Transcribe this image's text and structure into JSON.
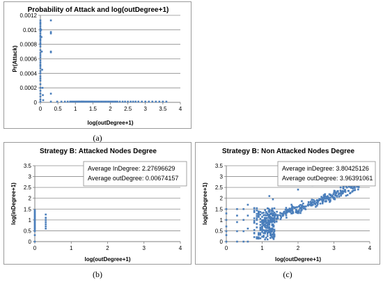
{
  "captions": [
    "(a)",
    "(b)",
    "(c)"
  ],
  "chart_data": [
    {
      "type": "scatter",
      "title": "Probability of Attack and log(outDegree+1)",
      "xlabel": "log(outDegree+1)",
      "ylabel": "Pr(Attack)",
      "xlim": [
        0,
        4
      ],
      "ylim": [
        0,
        0.0012
      ],
      "xticks": [
        0,
        0.5,
        1,
        1.5,
        2,
        2.5,
        3,
        3.5,
        4
      ],
      "yticks": [
        0,
        0.0002,
        0.0004,
        0.0006,
        0.0008,
        0.001,
        0.0012
      ],
      "grid": "horizontal",
      "color": "#4a7ebb",
      "points": [
        [
          0.0,
          0.00113
        ],
        [
          0.0,
          0.0011
        ],
        [
          0.0,
          0.00108
        ],
        [
          0.0,
          0.00105
        ],
        [
          0.0,
          0.00102
        ],
        [
          0.0,
          0.001
        ],
        [
          0.0,
          0.00098
        ],
        [
          0.0,
          0.00095
        ],
        [
          0.0,
          0.00092
        ],
        [
          0.0,
          0.0009
        ],
        [
          0.0,
          0.00087
        ],
        [
          0.0,
          0.00085
        ],
        [
          0.0,
          0.00082
        ],
        [
          0.0,
          0.0008
        ],
        [
          0.0,
          0.00077
        ],
        [
          0.0,
          0.00072
        ],
        [
          0.0,
          0.00068
        ],
        [
          0.0,
          0.00065
        ],
        [
          0.0,
          0.00062
        ],
        [
          0.0,
          0.00058
        ],
        [
          0.0,
          0.00055
        ],
        [
          0.0,
          0.00052
        ],
        [
          0.0,
          0.0005
        ],
        [
          0.0,
          0.00047
        ],
        [
          0.0,
          0.00043
        ],
        [
          0.0,
          0.0004
        ],
        [
          0.0,
          0.00036
        ],
        [
          0.0,
          0.00033
        ],
        [
          0.0,
          0.0003
        ],
        [
          0.0,
          0.00025
        ],
        [
          0.0,
          0.0002
        ],
        [
          0.0,
          0.00016
        ],
        [
          0.0,
          0.00012
        ],
        [
          0.0,
          8e-05
        ],
        [
          0.0,
          4e-05
        ],
        [
          0.0,
          1e-05
        ],
        [
          0.02,
          0.001
        ],
        [
          0.03,
          0.0009
        ],
        [
          0.04,
          0.0007
        ],
        [
          0.05,
          0.00045
        ],
        [
          0.06,
          0.0002
        ],
        [
          0.07,
          0.0001
        ],
        [
          0.08,
          3e-05
        ],
        [
          0.3,
          0.00113
        ],
        [
          0.3,
          0.00097
        ],
        [
          0.3,
          0.00095
        ],
        [
          0.3,
          0.0007
        ],
        [
          0.3,
          0.00069
        ],
        [
          0.3,
          0.00012
        ],
        [
          0.3,
          1e-05
        ],
        [
          0.48,
          1e-05
        ],
        [
          0.6,
          1e-05
        ],
        [
          0.7,
          1e-05
        ],
        [
          0.78,
          1e-05
        ],
        [
          0.85,
          1e-05
        ],
        [
          0.9,
          1e-05
        ],
        [
          0.95,
          1e-05
        ],
        [
          1.0,
          1e-05
        ],
        [
          1.04,
          1e-05
        ],
        [
          1.08,
          1e-05
        ],
        [
          1.11,
          1e-05
        ],
        [
          1.15,
          1e-05
        ],
        [
          1.18,
          1e-05
        ],
        [
          1.2,
          1e-05
        ],
        [
          1.23,
          1e-05
        ],
        [
          1.26,
          1e-05
        ],
        [
          1.3,
          1e-05
        ],
        [
          1.34,
          1e-05
        ],
        [
          1.38,
          1e-05
        ],
        [
          1.42,
          1e-05
        ],
        [
          1.46,
          1e-05
        ],
        [
          1.5,
          1e-05
        ],
        [
          1.55,
          1e-05
        ],
        [
          1.6,
          1e-05
        ],
        [
          1.65,
          1e-05
        ],
        [
          1.7,
          1e-05
        ],
        [
          1.75,
          1e-05
        ],
        [
          1.8,
          1e-05
        ],
        [
          1.85,
          1e-05
        ],
        [
          1.9,
          1e-05
        ],
        [
          1.95,
          1e-05
        ],
        [
          2.0,
          1e-05
        ],
        [
          2.05,
          1e-05
        ],
        [
          2.1,
          1e-05
        ],
        [
          2.15,
          1e-05
        ],
        [
          2.2,
          1e-05
        ],
        [
          2.27,
          1e-05
        ],
        [
          2.35,
          1e-05
        ],
        [
          2.42,
          1e-05
        ],
        [
          2.5,
          1e-05
        ],
        [
          2.58,
          1e-05
        ],
        [
          2.65,
          1e-05
        ],
        [
          2.72,
          1e-05
        ],
        [
          2.8,
          1e-05
        ],
        [
          2.9,
          1e-05
        ],
        [
          3.0,
          1e-05
        ],
        [
          3.1,
          1e-05
        ],
        [
          3.2,
          1e-05
        ],
        [
          3.3,
          1e-05
        ],
        [
          3.4,
          1e-05
        ],
        [
          3.5,
          1e-05
        ],
        [
          3.6,
          1e-05
        ]
      ]
    },
    {
      "type": "scatter",
      "title": "Strategy B: Attacked Nodes Degree",
      "xlabel": "log(outDegree+1)",
      "ylabel": "log(inDegree+1)",
      "xlim": [
        0,
        4
      ],
      "ylim": [
        0,
        3.5
      ],
      "xticks": [
        0,
        1,
        2,
        3,
        4
      ],
      "yticks": [
        0,
        0.5,
        1,
        1.5,
        2,
        2.5,
        3,
        3.5
      ],
      "grid": "horizontal",
      "color": "#4a7ebb",
      "annotations": [
        "Average InDegree: 2.27696629",
        "Average outDegree: 0.00674157"
      ],
      "points": [
        [
          0,
          1.45
        ],
        [
          0,
          1.4
        ],
        [
          0,
          1.35
        ],
        [
          0,
          1.3
        ],
        [
          0,
          1.25
        ],
        [
          0,
          1.2
        ],
        [
          0,
          1.15
        ],
        [
          0,
          1.1
        ],
        [
          0,
          1.05
        ],
        [
          0,
          1.0
        ],
        [
          0,
          0.95
        ],
        [
          0,
          0.9
        ],
        [
          0,
          0.85
        ],
        [
          0,
          0.8
        ],
        [
          0,
          0.75
        ],
        [
          0,
          0.7
        ],
        [
          0,
          0.65
        ],
        [
          0,
          0.6
        ],
        [
          0,
          0.55
        ],
        [
          0,
          0.48
        ],
        [
          0,
          0.3
        ],
        [
          0,
          0.0
        ],
        [
          0.3,
          1.25
        ],
        [
          0.3,
          1.1
        ],
        [
          0.3,
          1.0
        ],
        [
          0.3,
          0.9
        ],
        [
          0.3,
          0.8
        ],
        [
          0.3,
          0.7
        ],
        [
          0.3,
          0.6
        ]
      ]
    },
    {
      "type": "scatter",
      "title": "Strategy B: Non Attacked Nodes Degree",
      "xlabel": "log(outDegree+1)",
      "ylabel": "log(inDegree+1)",
      "xlim": [
        0,
        4
      ],
      "ylim": [
        0,
        3.5
      ],
      "xticks": [
        0,
        1,
        2,
        3,
        4
      ],
      "yticks": [
        0,
        0.5,
        1,
        1.5,
        2,
        2.5,
        3,
        3.5
      ],
      "grid": "horizontal",
      "color": "#4a7ebb",
      "annotations": [
        "Average inDegree: 3.80425126",
        "Average outDegree: 3.96391061"
      ],
      "generated_cloud": true,
      "points": [
        [
          0,
          1.5
        ],
        [
          0,
          1.3
        ],
        [
          0,
          1.0
        ],
        [
          0,
          0.7
        ],
        [
          0,
          0.48
        ],
        [
          0,
          0.3
        ],
        [
          0,
          0.0
        ],
        [
          0.3,
          1.5
        ],
        [
          0.3,
          1.2
        ],
        [
          0.3,
          0.9
        ],
        [
          0.3,
          0.48
        ],
        [
          0.3,
          0.0
        ],
        [
          0.48,
          1.5
        ],
        [
          0.48,
          1.0
        ],
        [
          0.48,
          0.48
        ],
        [
          0.48,
          0.0
        ],
        [
          0.6,
          1.7
        ],
        [
          0.6,
          1.2
        ],
        [
          0.6,
          0.6
        ],
        [
          0.6,
          0.0
        ],
        [
          1.2,
          2.1
        ],
        [
          1.3,
          1.95
        ],
        [
          2.0,
          2.4
        ],
        [
          2.4,
          2.6
        ],
        [
          2.8,
          2.9
        ],
        [
          3.2,
          3.0
        ],
        [
          3.5,
          2.55
        ]
      ]
    }
  ]
}
